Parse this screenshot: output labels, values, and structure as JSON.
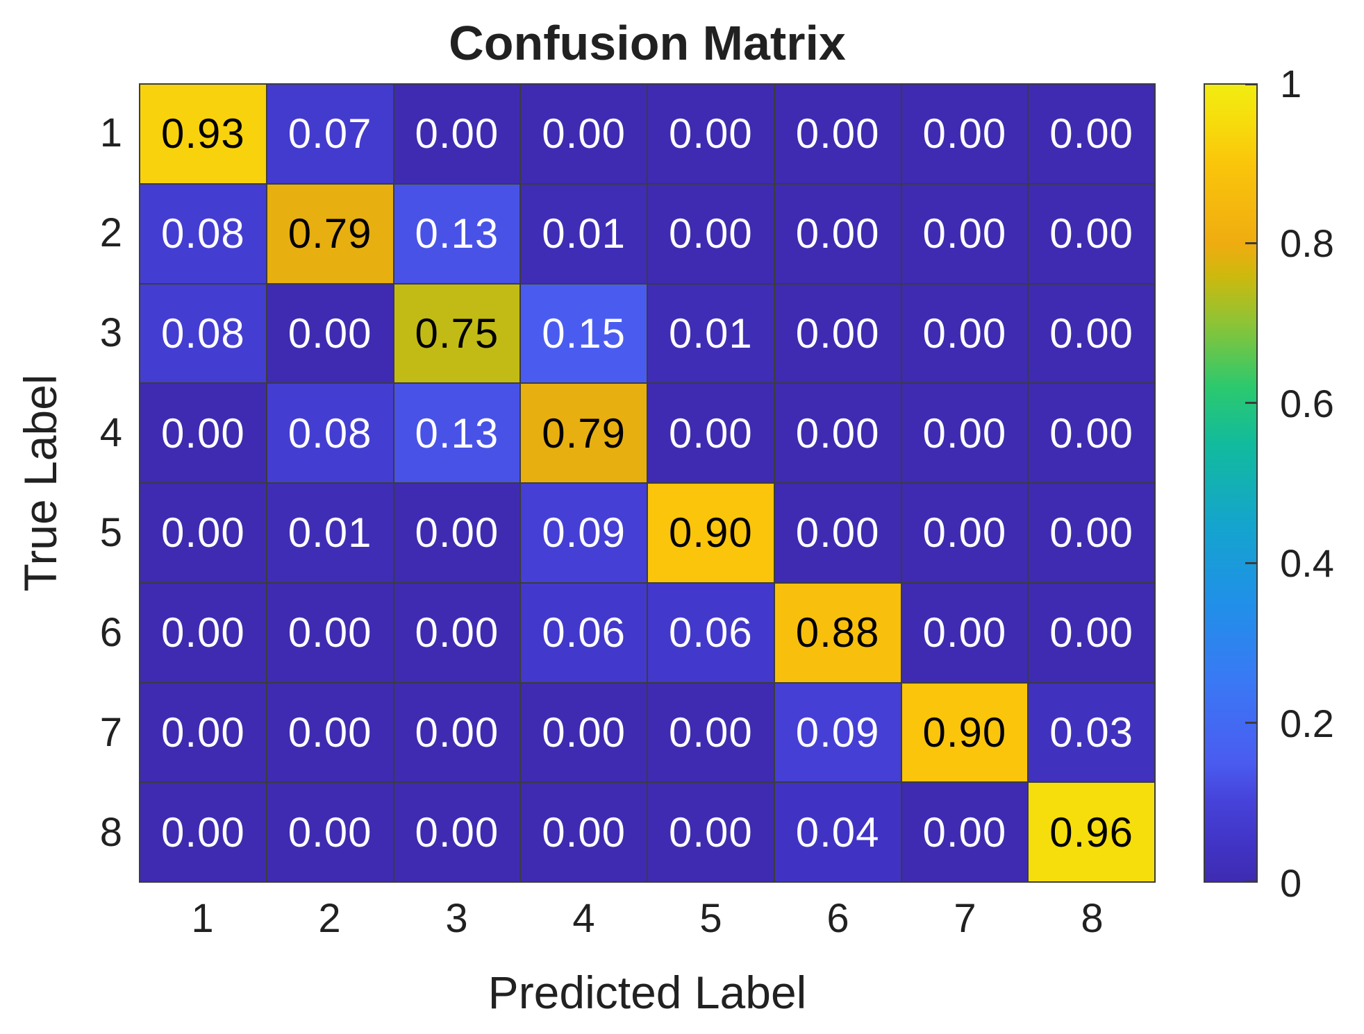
{
  "chart_data": {
    "type": "heatmap",
    "title": "Confusion Matrix",
    "xlabel": "Predicted Label",
    "ylabel": "True Label",
    "x_tick_labels": [
      "1",
      "2",
      "3",
      "4",
      "5",
      "6",
      "7",
      "8"
    ],
    "y_tick_labels": [
      "1",
      "2",
      "3",
      "4",
      "5",
      "6",
      "7",
      "8"
    ],
    "values": [
      [
        0.93,
        0.07,
        0.0,
        0.0,
        0.0,
        0.0,
        0.0,
        0.0
      ],
      [
        0.08,
        0.79,
        0.13,
        0.01,
        0.0,
        0.0,
        0.0,
        0.0
      ],
      [
        0.08,
        0.0,
        0.75,
        0.15,
        0.01,
        0.0,
        0.0,
        0.0
      ],
      [
        0.0,
        0.08,
        0.13,
        0.79,
        0.0,
        0.0,
        0.0,
        0.0
      ],
      [
        0.0,
        0.01,
        0.0,
        0.09,
        0.9,
        0.0,
        0.0,
        0.0
      ],
      [
        0.0,
        0.0,
        0.0,
        0.06,
        0.06,
        0.88,
        0.0,
        0.0
      ],
      [
        0.0,
        0.0,
        0.0,
        0.0,
        0.0,
        0.09,
        0.9,
        0.03
      ],
      [
        0.0,
        0.0,
        0.0,
        0.0,
        0.0,
        0.04,
        0.0,
        0.96
      ]
    ],
    "value_decimals": 2,
    "grid": true,
    "colorbar": {
      "min": 0,
      "max": 1,
      "ticks": [
        {
          "label": "1",
          "value": 1.0
        },
        {
          "label": "0.8",
          "value": 0.8
        },
        {
          "label": "0.6",
          "value": 0.6
        },
        {
          "label": "0.4",
          "value": 0.4
        },
        {
          "label": "0.2",
          "value": 0.2
        },
        {
          "label": "0",
          "value": 0.0
        }
      ]
    },
    "colormap": [
      {
        "t": 0.0,
        "color": "#3E2BB1"
      },
      {
        "t": 0.05,
        "color": "#4135C7"
      },
      {
        "t": 0.1,
        "color": "#4642D9"
      },
      {
        "t": 0.15,
        "color": "#4A5CF0"
      },
      {
        "t": 0.25,
        "color": "#3A78F5"
      },
      {
        "t": 0.35,
        "color": "#2090E8"
      },
      {
        "t": 0.45,
        "color": "#14A5CC"
      },
      {
        "t": 0.55,
        "color": "#12BB9C"
      },
      {
        "t": 0.62,
        "color": "#2BC96E"
      },
      {
        "t": 0.7,
        "color": "#8CC436"
      },
      {
        "t": 0.76,
        "color": "#CDB90E"
      },
      {
        "t": 0.8,
        "color": "#EFAC10"
      },
      {
        "t": 0.9,
        "color": "#FAC50B"
      },
      {
        "t": 0.95,
        "color": "#F7DB0C"
      },
      {
        "t": 1.0,
        "color": "#F2EC11"
      }
    ],
    "cell_text_color_low": "#FFFFFF",
    "cell_text_color_high": "#000000",
    "black_text_threshold": 0.5
  }
}
